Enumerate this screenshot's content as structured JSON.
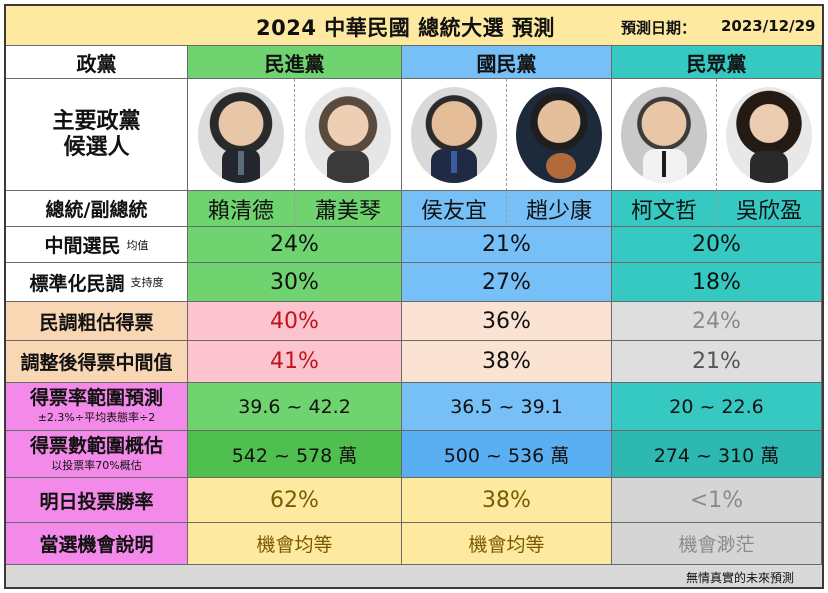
{
  "title": "2024 中華民國 總統大選  預測",
  "date_label": "預測日期：",
  "date_value": "2023/12/29",
  "header": {
    "party_label": "政黨",
    "parties": [
      "民進黨",
      "國民黨",
      "民眾黨"
    ]
  },
  "candidates_label": {
    "line1": "主要政黨",
    "line2": "候選人"
  },
  "names_label": "總統/副總統",
  "names": [
    "賴清德",
    "蕭美琴",
    "侯友宜",
    "趙少康",
    "柯文哲",
    "吳欣盈"
  ],
  "rows": {
    "median_voter": {
      "label": "中間選民",
      "sub": "均值",
      "values": [
        "24%",
        "21%",
        "20%"
      ]
    },
    "std_poll": {
      "label": "標準化民調",
      "sub": "支持度",
      "values": [
        "30%",
        "27%",
        "18%"
      ]
    },
    "poll_estimate": {
      "label": "民調粗估得票",
      "values": [
        "40%",
        "36%",
        "24%"
      ]
    },
    "adjusted": {
      "label": "調整後得票中間值",
      "values": [
        "41%",
        "38%",
        "21%"
      ]
    },
    "rate_range": {
      "label": "得票率範圍預測",
      "sub": "±2.3%÷平均表態率÷2",
      "values": [
        "39.6 ~ 42.2",
        "36.5 ~ 39.1",
        "20 ~ 22.6"
      ]
    },
    "vote_range": {
      "label": "得票數範圍概估",
      "sub": "以投票率70%概估",
      "values": [
        "542 ~ 578 萬",
        "500 ~ 536 萬",
        "274 ~ 310 萬"
      ]
    },
    "win_rate": {
      "label": "明日投票勝率",
      "values": [
        "62%",
        "38%",
        "<1%"
      ]
    },
    "note": {
      "label": "當選機會說明",
      "values": [
        "機會均等",
        "機會均等",
        "機會渺茫"
      ]
    }
  },
  "footer": "無情真實的未來預測",
  "colors": {
    "title_bg": "#fde9a0",
    "dpp": "#6fd36f",
    "kmt": "#76bff7",
    "tpp": "#35c9c2",
    "pink_label": "#f389e8",
    "peach": "#f9d7b4",
    "yellow": "#fde9a0"
  }
}
